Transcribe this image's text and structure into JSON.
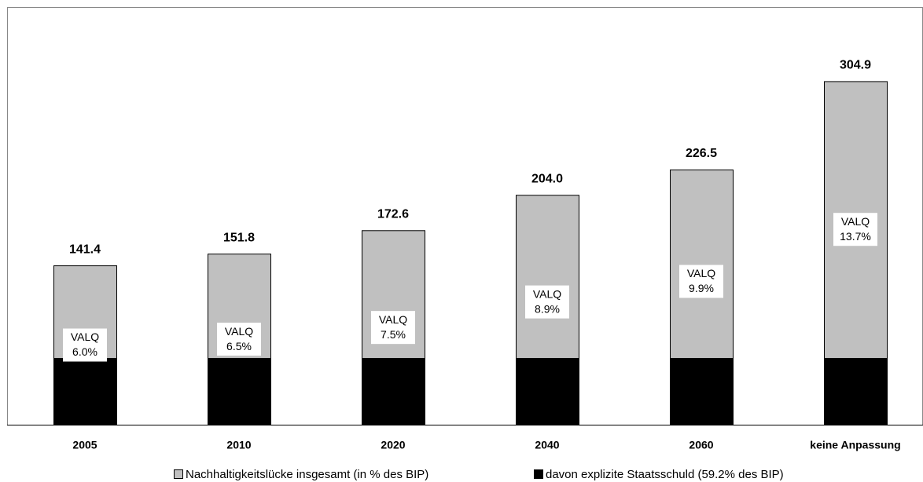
{
  "chart_data": {
    "type": "bar",
    "categories": [
      "2005",
      "2010",
      "2020",
      "2040",
      "2060",
      "keine Anpassung"
    ],
    "series": [
      {
        "name": "Nachhaltigkeitslücke insgesamt (in % des BIP)",
        "color": "#c0c0c0",
        "values": [
          141.4,
          151.8,
          172.6,
          204.0,
          226.5,
          304.9
        ],
        "value_labels": [
          "141.4",
          "151.8",
          "172.6",
          "204.0",
          "226.5",
          "304.9"
        ]
      },
      {
        "name": "davon explizite Staatsschuld (59.2% des BIP)",
        "color": "#000000",
        "values": [
          59.2,
          59.2,
          59.2,
          59.2,
          59.2,
          59.2
        ]
      }
    ],
    "annotations": [
      [
        "VALQ",
        "6.0%"
      ],
      [
        "VALQ",
        "6.5%"
      ],
      [
        "VALQ",
        "7.5%"
      ],
      [
        "VALQ",
        "8.9%"
      ],
      [
        "VALQ",
        "9.9%"
      ],
      [
        "VALQ",
        "13.7%"
      ]
    ],
    "ylim": [
      0,
      370
    ]
  }
}
